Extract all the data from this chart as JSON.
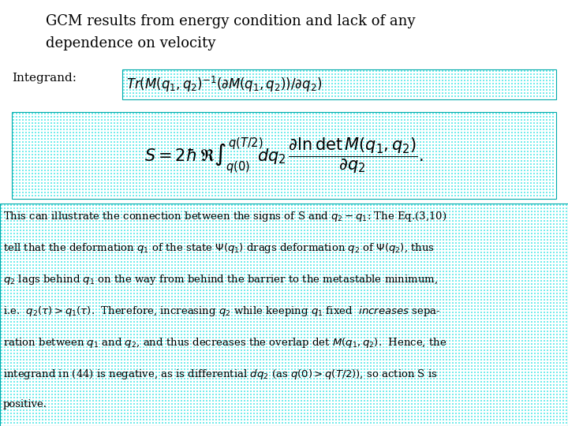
{
  "title_line1": "GCM results from energy condition and lack of any",
  "title_line2": "dependence on velocity",
  "integrand_label": "Integrand:",
  "bg_color": "#ffffff",
  "text_color": "#000000",
  "cyan_dot": "#00e5e5",
  "title_fontsize": 13,
  "label_fontsize": 11,
  "formula_fontsize": 10,
  "body_fontsize": 9.5,
  "body_lines": [
    "This can illustrate the connection between the signs of S and $q_2-q_1$: The Eq.(3,10)",
    "tell that the deformation $q_1$ of the state $\\Psi(q_1)$ drags deformation $q_2$ of $\\Psi(q_2)$, thus",
    "$q_2$ lags behind $q_1$ on the way from behind the barrier to the metastable minimum,",
    "i.e.  $q_2(\\tau) > q_1(\\tau)$.  Therefore, increasing $q_2$ while keeping $q_1$ fixed  $\\it{increases}$ sepa-",
    "ration between $q_1$ and $q_2$, and thus decreases the overlap det $M(q_1,q_2)$.  Hence, the",
    "integrand in (44) is negative, as is differential $dq_2$ (as $q(0) > q(T/2)$), so action S is",
    "positive."
  ]
}
